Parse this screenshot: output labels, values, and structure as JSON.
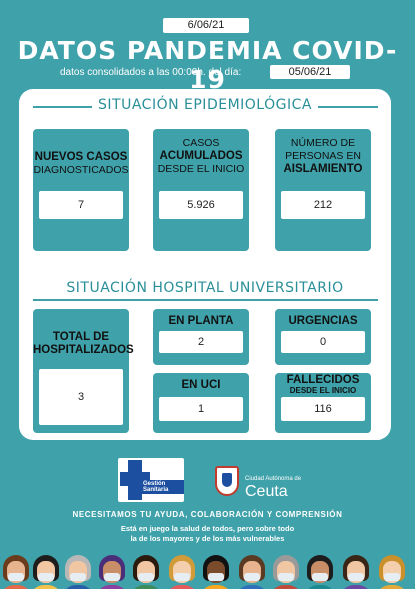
{
  "header": {
    "date": "6/06/21",
    "title": "DATOS PANDEMIA COVID-19",
    "subline": "datos consolidados a las 00:00h. del día:",
    "consolidated_date": "05/06/21"
  },
  "epidemiologica": {
    "title": "SITUACIÓN EPIDEMIOLÓGICA",
    "cards": [
      {
        "line1": "NUEVOS CASOS",
        "line2": "DIAGNOSTICADOS",
        "line3": "",
        "value": "7"
      },
      {
        "line1": "CASOS",
        "line2": "ACUMULADOS",
        "line3": "DESDE EL INICIO",
        "value": "5.926"
      },
      {
        "line1": "NÚMERO DE",
        "line2": "PERSONAS EN",
        "line3": "AISLAMIENTO",
        "value": "212"
      }
    ]
  },
  "hospital": {
    "title": "SITUACIÓN HOSPITAL UNIVERSITARIO",
    "total": {
      "line1": "TOTAL DE",
      "line2": "HOSPITALIZADOS",
      "value": "3"
    },
    "planta": {
      "label": "EN PLANTA",
      "value": "2"
    },
    "urgencias": {
      "label": "URGENCIAS",
      "value": "0"
    },
    "uci": {
      "label": "EN UCI",
      "value": "1"
    },
    "fallecidos": {
      "label": "FALLECIDOS",
      "sublabel": "DESDE EL INICIO",
      "value": "116"
    }
  },
  "footer": {
    "logo_gestion_text": "Gestión Sanitaria",
    "ceuta_small": "Ciudad Autónoma",
    "ceuta_de": "de",
    "ceuta_name": "Ceuta",
    "message1": "NECESITAMOS TU AYUDA, COLABORACIÓN Y COMPRENSIÓN",
    "message2_line1": "Está en juego la salud de todos, pero sobre todo",
    "message2_line2": "la de los mayores y de los más vulnerables"
  },
  "colors": {
    "background": "#3fa1a9",
    "section_title": "#2a8f98",
    "brand_blue": "#1c4fa0"
  }
}
